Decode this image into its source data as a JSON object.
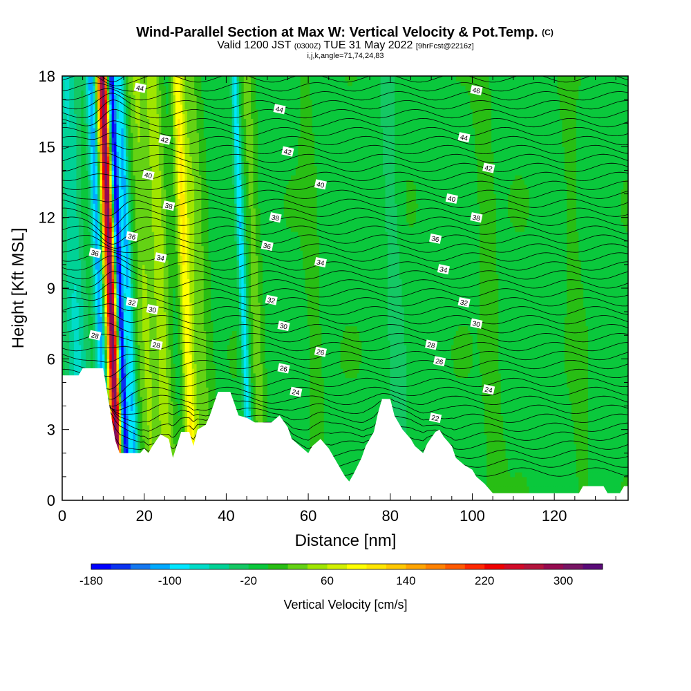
{
  "header": {
    "title": "Wind-Parallel Section at Max W: Vertical Velocity & Pot.Temp.",
    "copyright": "(C)",
    "valid_prefix": "Valid 1200 JST",
    "valid_utc": "(0300Z)",
    "valid_date": "TUE 31 May 2022",
    "forecast": "[9hrFcst@2216z]",
    "ijk_line": "i,j,k,angle=71,74,24,83"
  },
  "chart_data": {
    "type": "heatmap",
    "xlabel": "Distance [nm]",
    "ylabel": "Height [Kft MSL]",
    "xlim": [
      0,
      138
    ],
    "ylim": [
      0,
      18
    ],
    "x_ticks": [
      0,
      20,
      40,
      60,
      80,
      100,
      120
    ],
    "y_ticks": [
      0,
      3,
      6,
      9,
      12,
      15,
      18
    ],
    "field": "Vertical Velocity",
    "colorbar": {
      "label": "Vertical Velocity [cm/s]",
      "min": -180,
      "max": 340,
      "step": 20,
      "tick_labels": [
        -180,
        -100,
        -20,
        60,
        140,
        220,
        300
      ],
      "colors": [
        "#0000ff",
        "#0a32f0",
        "#1478f0",
        "#00aaff",
        "#00e6ff",
        "#00dcc8",
        "#00d296",
        "#14c864",
        "#0ac83c",
        "#28be14",
        "#64d214",
        "#a0e600",
        "#d2f000",
        "#ffff00",
        "#ffe600",
        "#ffc800",
        "#ffa500",
        "#ff8200",
        "#ff5a00",
        "#ff2800",
        "#f00000",
        "#d20a28",
        "#b4143c",
        "#960a50",
        "#781464",
        "#5a0a78"
      ]
    },
    "overlay": "Potential temperature contours (C)",
    "terrain_profile": [
      [
        0,
        5.3
      ],
      [
        4,
        5.3
      ],
      [
        5,
        5.6
      ],
      [
        10,
        5.6
      ],
      [
        12,
        3.5
      ],
      [
        13,
        2.5
      ],
      [
        14,
        2.0
      ],
      [
        19,
        2.0
      ],
      [
        20,
        2.2
      ],
      [
        21,
        2.0
      ],
      [
        22,
        2.3
      ],
      [
        24,
        2.8
      ],
      [
        26,
        2.6
      ],
      [
        27,
        1.8
      ],
      [
        29,
        2.9
      ],
      [
        31,
        2.9
      ],
      [
        32,
        2.3
      ],
      [
        33,
        3.0
      ],
      [
        35,
        3.2
      ],
      [
        36,
        3.6
      ],
      [
        37,
        4.1
      ],
      [
        38,
        4.6
      ],
      [
        41,
        4.6
      ],
      [
        42,
        4.1
      ],
      [
        43,
        3.6
      ],
      [
        45,
        3.5
      ],
      [
        47,
        3.3
      ],
      [
        51,
        3.3
      ],
      [
        53,
        3.6
      ],
      [
        55,
        3.1
      ],
      [
        56,
        2.6
      ],
      [
        58,
        2.3
      ],
      [
        60,
        2.0
      ],
      [
        61,
        2.3
      ],
      [
        63,
        2.6
      ],
      [
        65,
        2.2
      ],
      [
        67,
        1.6
      ],
      [
        69,
        1.0
      ],
      [
        70,
        0.8
      ],
      [
        71,
        1.1
      ],
      [
        73,
        1.8
      ],
      [
        74,
        2.3
      ],
      [
        76,
        2.9
      ],
      [
        77,
        3.7
      ],
      [
        78,
        4.3
      ],
      [
        80,
        4.3
      ],
      [
        81,
        3.6
      ],
      [
        83,
        3.0
      ],
      [
        85,
        2.6
      ],
      [
        86,
        2.3
      ],
      [
        88,
        2.0
      ],
      [
        89,
        2.4
      ],
      [
        91,
        2.9
      ],
      [
        92,
        3.0
      ],
      [
        93,
        2.7
      ],
      [
        95,
        2.3
      ],
      [
        96,
        1.8
      ],
      [
        98,
        1.5
      ],
      [
        100,
        1.3
      ],
      [
        101,
        1.0
      ],
      [
        103,
        0.7
      ],
      [
        105,
        0.3
      ],
      [
        126,
        0.3
      ],
      [
        127,
        0.6
      ],
      [
        132,
        0.6
      ],
      [
        133,
        0.3
      ],
      [
        136,
        0.3
      ],
      [
        137,
        0.6
      ],
      [
        138,
        0.6
      ]
    ],
    "velocity_features": [
      {
        "x": 3,
        "w": 2.5,
        "v": -55
      },
      {
        "x": 9,
        "w": 1.3,
        "v": -110
      },
      {
        "x": 11,
        "w": 1.1,
        "v": 150
      },
      {
        "x": 12,
        "w": 0.9,
        "v": 240
      },
      {
        "x": 14,
        "w": 0.8,
        "v": -170
      },
      {
        "x": 16,
        "w": 1.1,
        "v": -100
      },
      {
        "x": 20,
        "w": 2.2,
        "v": 45
      },
      {
        "x": 24,
        "w": 2.0,
        "v": 55
      },
      {
        "x": 30,
        "w": 1.4,
        "v": 100
      },
      {
        "x": 33,
        "w": 2.2,
        "v": 40
      },
      {
        "x": 44,
        "w": 0.9,
        "v": -90
      },
      {
        "x": 47,
        "w": 1.4,
        "v": 35
      },
      {
        "x": 61,
        "w": 1.5,
        "v": 18
      },
      {
        "x": 81,
        "w": 2.0,
        "v": -28
      },
      {
        "x": 104,
        "w": 1.8,
        "v": 22
      },
      {
        "x": 125,
        "w": 1.5,
        "v": 18
      }
    ],
    "contours": [
      {
        "label": "22",
        "base": 2.8,
        "lx": 91,
        "ly": 3.5
      },
      {
        "label": "24",
        "base": 4.6,
        "lx": 104,
        "ly": 4.7
      },
      {
        "label": "24",
        "base": 4.6,
        "lx": 57,
        "ly": 4.6
      },
      {
        "label": "26",
        "base": 5.7,
        "lx": 92,
        "ly": 5.9
      },
      {
        "label": "26",
        "base": 5.7,
        "lx": 54,
        "ly": 5.6
      },
      {
        "label": "28",
        "base": 6.6,
        "lx": 90,
        "ly": 6.6
      },
      {
        "label": "28",
        "base": 6.6,
        "lx": 23,
        "ly": 6.6
      },
      {
        "label": "26",
        "base": 5.7,
        "lx": 63,
        "ly": 6.3
      },
      {
        "label": "30",
        "base": 7.6,
        "lx": 101,
        "ly": 7.5
      },
      {
        "label": "30",
        "base": 7.6,
        "lx": 54,
        "ly": 7.4
      },
      {
        "label": "30",
        "base": 7.6,
        "lx": 22,
        "ly": 8.1
      },
      {
        "label": "32",
        "base": 8.5,
        "lx": 98,
        "ly": 8.4
      },
      {
        "label": "32",
        "base": 8.5,
        "lx": 51,
        "ly": 8.5
      },
      {
        "label": "34",
        "base": 9.9,
        "lx": 93,
        "ly": 9.8
      },
      {
        "label": "34",
        "base": 9.9,
        "lx": 63,
        "ly": 10.1
      },
      {
        "label": "34",
        "base": 9.9,
        "lx": 24,
        "ly": 10.3
      },
      {
        "label": "36",
        "base": 11.0,
        "lx": 91,
        "ly": 11.1
      },
      {
        "label": "36",
        "base": 11.0,
        "lx": 50,
        "ly": 10.8
      },
      {
        "label": "36",
        "base": 11.0,
        "lx": 17,
        "ly": 11.2
      },
      {
        "label": "38",
        "base": 12.0,
        "lx": 101,
        "ly": 12.0
      },
      {
        "label": "38",
        "base": 12.0,
        "lx": 52,
        "ly": 12.0
      },
      {
        "label": "38",
        "base": 12.0,
        "lx": 26,
        "ly": 12.5
      },
      {
        "label": "40",
        "base": 12.9,
        "lx": 95,
        "ly": 12.8
      },
      {
        "label": "40",
        "base": 12.9,
        "lx": 63,
        "ly": 13.4
      },
      {
        "label": "40",
        "base": 12.9,
        "lx": 21,
        "ly": 13.8
      },
      {
        "label": "42",
        "base": 14.2,
        "lx": 104,
        "ly": 14.1
      },
      {
        "label": "42",
        "base": 14.2,
        "lx": 55,
        "ly": 14.8
      },
      {
        "label": "42",
        "base": 14.2,
        "lx": 25,
        "ly": 15.3
      },
      {
        "label": "44",
        "base": 15.4,
        "lx": 98,
        "ly": 15.4
      },
      {
        "label": "44",
        "base": 15.4,
        "lx": 53,
        "ly": 16.6
      },
      {
        "label": "44",
        "base": 15.4,
        "lx": 19,
        "ly": 17.5
      },
      {
        "label": "46",
        "base": 16.8,
        "lx": 101,
        "ly": 17.4
      },
      {
        "label": "36",
        "base": 11.0,
        "lx": 8,
        "ly": 10.5
      },
      {
        "label": "32",
        "base": 8.5,
        "lx": 17,
        "ly": 8.4
      },
      {
        "label": "28",
        "base": 6.6,
        "lx": 8,
        "ly": 7.0
      }
    ]
  }
}
